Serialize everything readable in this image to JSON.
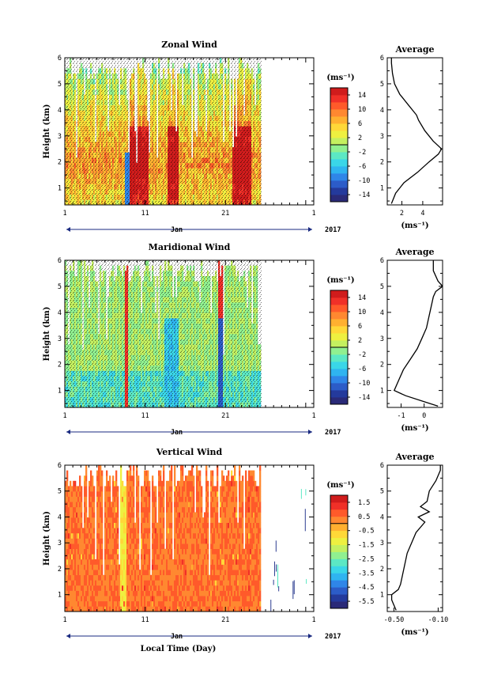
{
  "chart_data": [
    {
      "type": "heatmap",
      "title": "Zonal Wind",
      "ylabel": "Height (km)",
      "xlabel": "",
      "month_label": "Jan",
      "year_label": "2017",
      "x_ticks": [
        "1",
        "11",
        "21",
        "1"
      ],
      "y_ticks": [
        "1",
        "2",
        "3",
        "4",
        "5",
        "6"
      ],
      "xlim": [
        1,
        32
      ],
      "ylim": [
        0.35,
        6
      ],
      "data_end_day": 25.5,
      "colorbar": {
        "unit": "(ms⁻¹)",
        "ticks": [
          "14",
          "10",
          "6",
          "2",
          "-2",
          "-6",
          "-10",
          "-14"
        ],
        "range": [
          -16,
          16
        ],
        "colors": [
          "#2a2a78",
          "#243a9c",
          "#2c5cc8",
          "#2f86e8",
          "#2fb4f0",
          "#3ad6e8",
          "#5ce8c4",
          "#90f090",
          "#c4f060",
          "#eef040",
          "#ffd838",
          "#ffb030",
          "#ff8830",
          "#ff5a2a",
          "#f03028",
          "#d01c1c"
        ]
      },
      "profile": {
        "title": "Average",
        "xlabel": "(ms⁻¹)",
        "x_ticks": [
          "2",
          "4"
        ],
        "xlim": [
          0.6,
          5.9
        ],
        "heights": [
          0.4,
          0.8,
          1.2,
          1.6,
          2.0,
          2.3,
          2.5,
          2.8,
          3.2,
          3.6,
          3.8,
          4.2,
          4.6,
          5.0,
          5.4,
          5.8,
          6.0
        ],
        "values": [
          1.0,
          1.4,
          2.2,
          3.5,
          4.6,
          5.5,
          5.8,
          5.0,
          4.2,
          3.6,
          3.4,
          2.6,
          1.8,
          1.3,
          1.1,
          1.0,
          1.0
        ]
      }
    },
    {
      "type": "heatmap",
      "title": "Maridional Wind",
      "ylabel": "Height (km)",
      "xlabel": "",
      "month_label": "Jan",
      "year_label": "2017",
      "x_ticks": [
        "1",
        "11",
        "21",
        "1"
      ],
      "y_ticks": [
        "1",
        "2",
        "3",
        "4",
        "5",
        "6"
      ],
      "xlim": [
        1,
        32
      ],
      "ylim": [
        0.35,
        6
      ],
      "data_end_day": 25.5,
      "colorbar": {
        "unit": "(ms⁻¹)",
        "ticks": [
          "14",
          "10",
          "6",
          "2",
          "-2",
          "-6",
          "-10",
          "-14"
        ],
        "range": [
          -16,
          16
        ],
        "colors": [
          "#2a2a78",
          "#243a9c",
          "#2c5cc8",
          "#2f86e8",
          "#2fb4f0",
          "#3ad6e8",
          "#5ce8c4",
          "#90f090",
          "#c4f060",
          "#eef040",
          "#ffd838",
          "#ffb030",
          "#ff8830",
          "#ff5a2a",
          "#f03028",
          "#d01c1c"
        ]
      },
      "profile": {
        "title": "Average",
        "xlabel": "(ms⁻¹)",
        "x_ticks": [
          "-1",
          "0"
        ],
        "xlim": [
          -1.6,
          0.8
        ],
        "heights": [
          0.4,
          0.8,
          1.0,
          1.4,
          1.8,
          2.2,
          2.6,
          3.0,
          3.4,
          3.8,
          4.2,
          4.6,
          4.8,
          5.0,
          5.2,
          5.6,
          6.0
        ],
        "values": [
          0.6,
          -0.8,
          -1.3,
          -1.1,
          -0.9,
          -0.6,
          -0.3,
          -0.1,
          0.1,
          0.2,
          0.3,
          0.4,
          0.5,
          0.8,
          0.6,
          0.4,
          0.4
        ]
      }
    },
    {
      "type": "heatmap",
      "title": "Vertical Wind",
      "ylabel": "Height (km)",
      "xlabel": "Local Time (Day)",
      "month_label": "Jan",
      "year_label": "2017",
      "x_ticks": [
        "1",
        "11",
        "21",
        "1"
      ],
      "y_ticks": [
        "1",
        "2",
        "3",
        "4",
        "5",
        "6"
      ],
      "xlim": [
        1,
        32
      ],
      "ylim": [
        0.35,
        6
      ],
      "data_end_day": 25.5,
      "colorbar": {
        "unit": "(ms⁻¹)",
        "ticks": [
          "1.5",
          "0.5",
          "-0.5",
          "-1.5",
          "-2.5",
          "-3.5",
          "-4.5",
          "-5.5"
        ],
        "range": [
          -6,
          2
        ],
        "colors": [
          "#2a2a78",
          "#243a9c",
          "#2c5cc8",
          "#2f86e8",
          "#2fb4f0",
          "#3ad6e8",
          "#5ce8c4",
          "#90f090",
          "#c4f060",
          "#eef040",
          "#ffd838",
          "#ffb030",
          "#ff8830",
          "#ff5a2a",
          "#f03028",
          "#d01c1c"
        ]
      },
      "profile": {
        "title": "Average",
        "xlabel": "(ms⁻¹)",
        "x_ticks": [
          "-0.50",
          "-0.10"
        ],
        "xlim": [
          -0.56,
          -0.06
        ],
        "heights": [
          0.4,
          0.8,
          1.0,
          1.2,
          1.4,
          1.8,
          2.2,
          2.6,
          3.0,
          3.4,
          3.8,
          4.0,
          4.2,
          4.4,
          4.6,
          5.0,
          5.4,
          5.8,
          6.0
        ],
        "values": [
          -0.48,
          -0.52,
          -0.52,
          -0.46,
          -0.44,
          -0.42,
          -0.4,
          -0.38,
          -0.34,
          -0.3,
          -0.22,
          -0.28,
          -0.18,
          -0.26,
          -0.2,
          -0.18,
          -0.12,
          -0.08,
          -0.08
        ]
      }
    }
  ]
}
